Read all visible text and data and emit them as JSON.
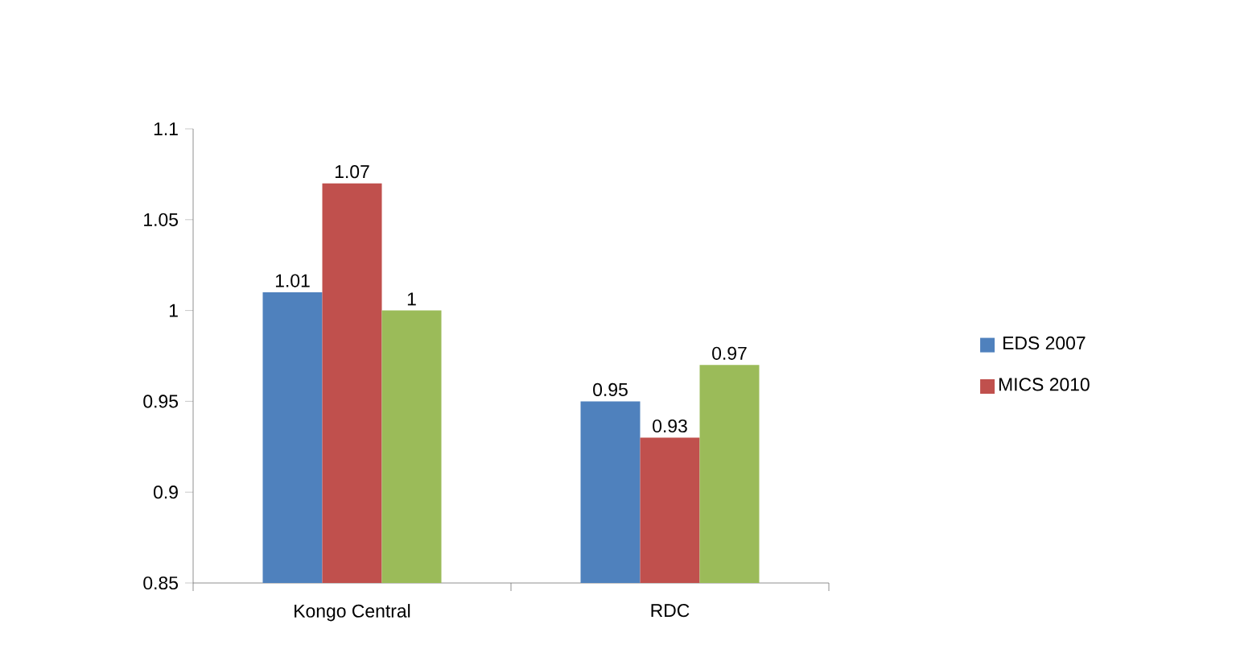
{
  "chart_data": {
    "type": "bar",
    "categories": [
      "Kongo Central",
      "RDC"
    ],
    "series": [
      {
        "name": "EDS 2007",
        "color": "#4f81bd",
        "values": [
          1.01,
          0.95
        ]
      },
      {
        "name": "MICS 2010",
        "color": "#c0504d",
        "values": [
          1.07,
          0.93
        ]
      },
      {
        "color": "#9bbb59",
        "values": [
          1,
          0.97
        ]
      }
    ],
    "ylim": [
      0.85,
      1.1
    ],
    "yticks": [
      0.85,
      0.9,
      0.95,
      1,
      1.05,
      1.1
    ],
    "grid": false,
    "legend": "right",
    "data_labels": true
  }
}
